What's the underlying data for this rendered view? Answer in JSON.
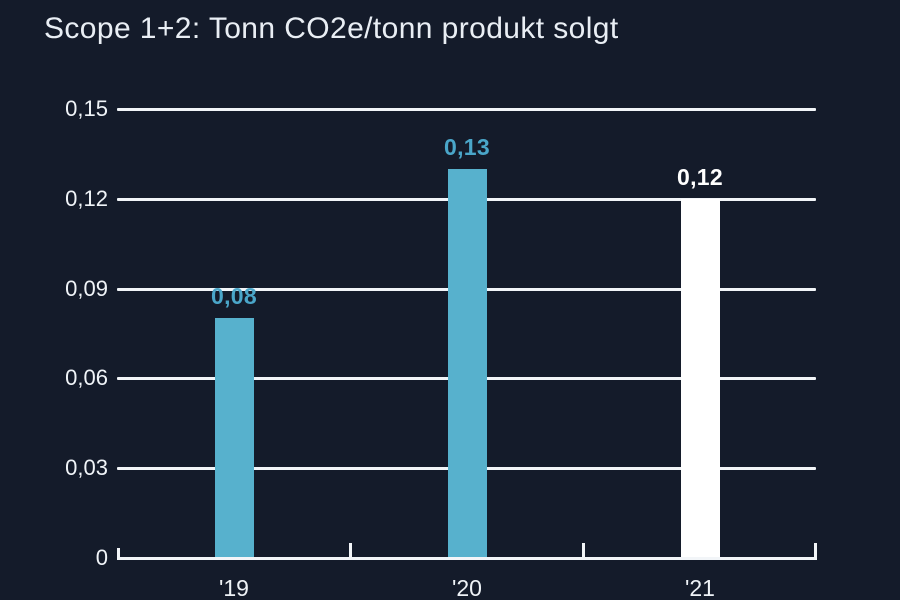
{
  "title": "Scope 1+2: Tonn CO2e/tonn produkt solgt",
  "colors": {
    "background": "#141b2a",
    "accent_blue": "#57b1cd",
    "white": "#ffffff",
    "gridline": "#f2f5f8",
    "title_text": "#e9eef4"
  },
  "chart_data": {
    "type": "bar",
    "title": "Scope 1+2: Tonn CO2e/tonn produkt solgt",
    "categories": [
      "'19",
      "'20",
      "'21"
    ],
    "values": [
      0.08,
      0.13,
      0.12
    ],
    "value_labels": [
      "0,08",
      "0,13",
      "0,12"
    ],
    "bar_colors": [
      "#57b1cd",
      "#57b1cd",
      "#ffffff"
    ],
    "value_label_colors": [
      "#4aa6c9",
      "#4aa6c9",
      "#ffffff"
    ],
    "xlabel": "",
    "ylabel": "",
    "ylim": [
      0,
      0.15
    ],
    "ytick_values": [
      0,
      0.03,
      0.06,
      0.09,
      0.12,
      0.15
    ],
    "ytick_labels": [
      "0",
      "0,03",
      "0,06",
      "0,09",
      "0,12",
      "0,15"
    ],
    "grid": "horizontal",
    "legend": "none",
    "number_format": "decimal-comma"
  }
}
